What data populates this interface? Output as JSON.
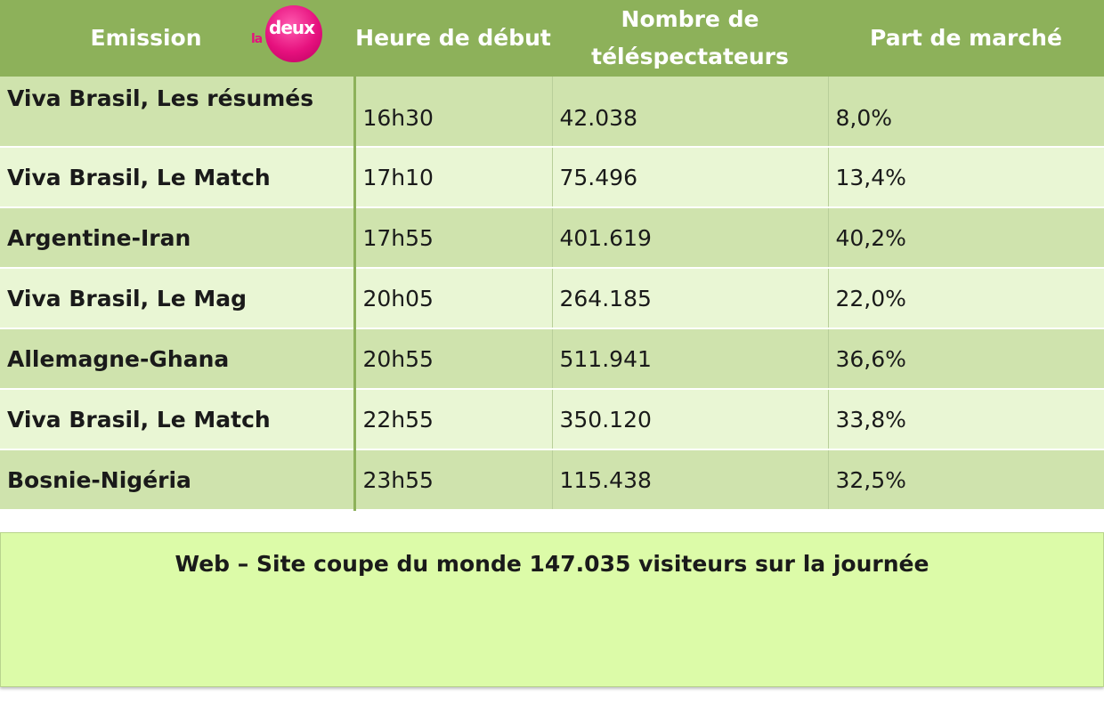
{
  "header": {
    "emission": "Emission",
    "logo": {
      "text_la": "la",
      "text_deux": "deux",
      "color": "#e6117e"
    },
    "heure": "Heure de début",
    "nombre_line1": "Nombre de",
    "nombre_line2": "téléspectateurs",
    "part": "Part de marché"
  },
  "rows": [
    {
      "emission": "Viva Brasil, Les résumés",
      "heure": "16h30",
      "nombre": "42.038",
      "part": "8,0%"
    },
    {
      "emission": "Viva Brasil, Le Match",
      "heure": "17h10",
      "nombre": "75.496",
      "part": "13,4%"
    },
    {
      "emission": "Argentine-Iran",
      "heure": "17h55",
      "nombre": "401.619",
      "part": "40,2%"
    },
    {
      "emission": "Viva Brasil, Le Mag",
      "heure": "20h05",
      "nombre": "264.185",
      "part": "22,0%"
    },
    {
      "emission": "Allemagne-Ghana",
      "heure": "20h55",
      "nombre": "511.941",
      "part": "36,6%"
    },
    {
      "emission": "Viva Brasil, Le Match",
      "heure": "22h55",
      "nombre": "350.120",
      "part": "33,8%"
    },
    {
      "emission": "Bosnie-Nigéria",
      "heure": "23h55",
      "nombre": "115.438",
      "part": "32,5%"
    }
  ],
  "web": {
    "text": "Web – Site coupe du monde 147.035 visiteurs sur la journée"
  },
  "colors": {
    "header_bg": "#8db15a",
    "row_dark": "#cfe3ad",
    "row_light": "#e9f6d4",
    "web_bg": "#dcfba8"
  }
}
